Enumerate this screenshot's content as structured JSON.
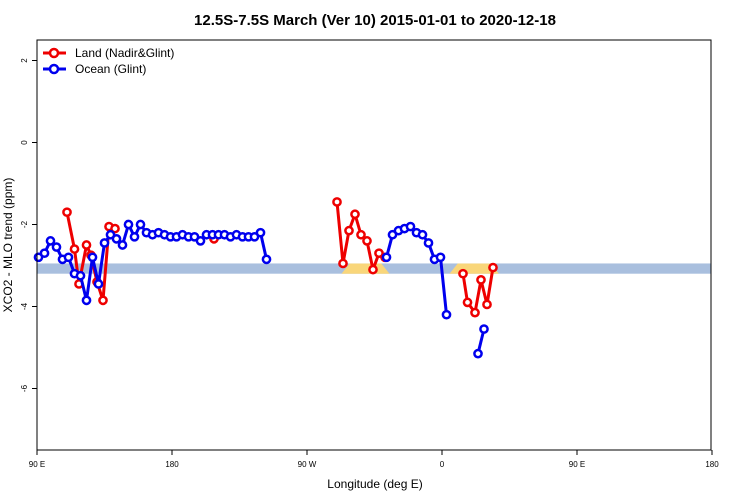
{
  "chart_data": {
    "type": "line",
    "title": "12.5S-7.5S March (Ver 10)   2015-01-01 to 2020-12-18",
    "xlabel": "Longitude (deg E)",
    "ylabel": "XCO2 - MLO trend (ppm)",
    "xlim": [
      90,
      450
    ],
    "ylim": [
      -7.5,
      2.5
    ],
    "x_ticks": [
      {
        "value": 90,
        "label": "90 E"
      },
      {
        "value": 180,
        "label": "180"
      },
      {
        "value": 270,
        "label": "90 W"
      },
      {
        "value": 360,
        "label": "0"
      },
      {
        "value": 450,
        "label": "90 E"
      },
      {
        "value": 540,
        "label": "180"
      }
    ],
    "y_ticks": [
      {
        "value": 2,
        "label": "2"
      },
      {
        "value": 0,
        "label": "0"
      },
      {
        "value": -2,
        "label": "-2"
      },
      {
        "value": -4,
        "label": "-4"
      },
      {
        "value": -6,
        "label": "-6"
      }
    ],
    "x_scale": 1.5,
    "band": {
      "y_low": -3.2,
      "y_high": -2.95,
      "color": "#a9bfde"
    },
    "band_highlights": [
      {
        "x_start": 293,
        "x_end": 325,
        "color": "#f9d67a"
      },
      {
        "x_start": 365,
        "x_end": 398,
        "color": "#f9d67a"
      }
    ],
    "legend": {
      "position": "top-left"
    },
    "series": [
      {
        "name": "Land (Nadir&Glint)",
        "color": "#ee0000",
        "segments": [
          [
            [
              110,
              -1.7
            ],
            [
              115,
              -2.6
            ],
            [
              118,
              -3.45
            ],
            [
              123,
              -2.5
            ],
            [
              126,
              -2.75
            ],
            [
              130,
              -3.4
            ],
            [
              134,
              -3.85
            ],
            [
              138,
              -2.05
            ],
            [
              142,
              -2.1
            ]
          ],
          [
            [
              208,
              -2.35
            ]
          ],
          [
            [
              290,
              -1.45
            ],
            [
              294,
              -2.95
            ],
            [
              298,
              -2.15
            ],
            [
              302,
              -1.75
            ],
            [
              306,
              -2.25
            ],
            [
              310,
              -2.4
            ],
            [
              314,
              -3.1
            ],
            [
              318,
              -2.7
            ],
            [
              322,
              -2.8
            ]
          ],
          [
            [
              374,
              -3.2
            ],
            [
              377,
              -3.9
            ],
            [
              382,
              -4.15
            ],
            [
              386,
              -3.35
            ],
            [
              390,
              -3.95
            ],
            [
              394,
              -3.05
            ]
          ]
        ]
      },
      {
        "name": "Ocean (Glint)",
        "color": "#0000ee",
        "segments": [
          [
            [
              91,
              -2.8
            ],
            [
              95,
              -2.7
            ],
            [
              99,
              -2.4
            ],
            [
              103,
              -2.55
            ],
            [
              107,
              -2.85
            ],
            [
              111,
              -2.8
            ],
            [
              115,
              -3.2
            ],
            [
              119,
              -3.25
            ],
            [
              123,
              -3.85
            ],
            [
              127,
              -2.8
            ],
            [
              131,
              -3.45
            ],
            [
              135,
              -2.45
            ],
            [
              139,
              -2.25
            ],
            [
              143,
              -2.35
            ],
            [
              147,
              -2.5
            ],
            [
              151,
              -2.0
            ],
            [
              155,
              -2.3
            ],
            [
              159,
              -2.0
            ],
            [
              163,
              -2.2
            ],
            [
              167,
              -2.25
            ],
            [
              171,
              -2.2
            ],
            [
              175,
              -2.25
            ],
            [
              179,
              -2.3
            ],
            [
              183,
              -2.3
            ],
            [
              187,
              -2.25
            ],
            [
              191,
              -2.3
            ],
            [
              195,
              -2.3
            ],
            [
              199,
              -2.4
            ],
            [
              203,
              -2.25
            ],
            [
              207,
              -2.25
            ],
            [
              211,
              -2.25
            ],
            [
              215,
              -2.25
            ],
            [
              219,
              -2.3
            ],
            [
              223,
              -2.25
            ],
            [
              227,
              -2.3
            ],
            [
              231,
              -2.3
            ],
            [
              235,
              -2.3
            ],
            [
              239,
              -2.2
            ],
            [
              243,
              -2.85
            ]
          ],
          [
            [
              323,
              -2.8
            ],
            [
              327,
              -2.25
            ],
            [
              331,
              -2.15
            ],
            [
              335,
              -2.1
            ],
            [
              339,
              -2.05
            ],
            [
              343,
              -2.2
            ],
            [
              347,
              -2.25
            ],
            [
              351,
              -2.45
            ],
            [
              355,
              -2.85
            ],
            [
              359,
              -2.8
            ],
            [
              363,
              -4.2
            ]
          ],
          [
            [
              384,
              -5.15
            ],
            [
              388,
              -4.55
            ]
          ]
        ]
      }
    ]
  }
}
